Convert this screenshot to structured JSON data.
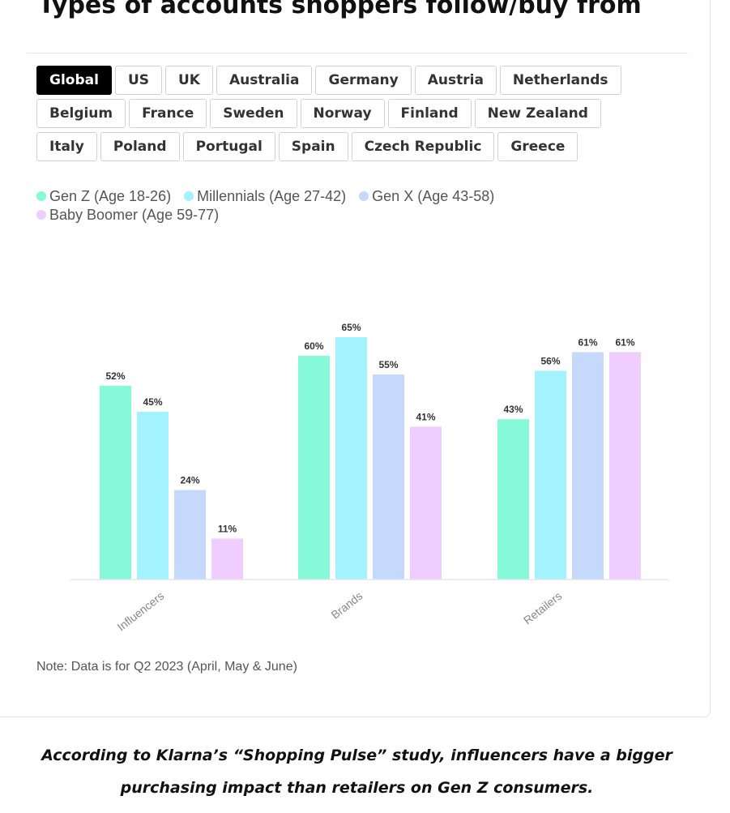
{
  "header": {
    "title": "Types of accounts shoppers follow/buy from"
  },
  "tabs": [
    {
      "label": "Global",
      "active": true
    },
    {
      "label": "US"
    },
    {
      "label": "UK"
    },
    {
      "label": "Australia"
    },
    {
      "label": "Germany"
    },
    {
      "label": "Austria"
    },
    {
      "label": "Netherlands"
    },
    {
      "label": "Belgium"
    },
    {
      "label": "France"
    },
    {
      "label": "Sweden"
    },
    {
      "label": "Norway"
    },
    {
      "label": "Finland"
    },
    {
      "label": "New Zealand"
    },
    {
      "label": "Italy"
    },
    {
      "label": "Poland"
    },
    {
      "label": "Portugal"
    },
    {
      "label": "Spain"
    },
    {
      "label": "Czech Republic"
    },
    {
      "label": "Greece"
    }
  ],
  "chart_data": {
    "type": "bar",
    "categories": [
      "Influencers",
      "Brands",
      "Retailers"
    ],
    "series": [
      {
        "name": "Gen Z (Age 18-26)",
        "color": "#86fad8",
        "values": [
          52,
          60,
          43
        ],
        "labels": [
          "52%",
          "60%",
          "43%"
        ]
      },
      {
        "name": "Millennials (Age 27-42)",
        "color": "#a3f2ff",
        "values": [
          45,
          65,
          56
        ],
        "labels": [
          "45%",
          "65%",
          "56%"
        ]
      },
      {
        "name": "Gen X (Age 43-58)",
        "color": "#c4d9fc",
        "values": [
          24,
          55,
          61
        ],
        "labels": [
          "24%",
          "55%",
          "61%"
        ]
      },
      {
        "name": "Baby Boomer (Age 59-77)",
        "color": "#efcdfe",
        "values": [
          11,
          41,
          61
        ],
        "labels": [
          "11%",
          "41%",
          "61%"
        ]
      }
    ],
    "ylim": [
      0,
      65
    ],
    "grid": false,
    "legend_position": "top-left"
  },
  "note": "Note: Data is for Q2 2023 (April, May & June)",
  "caption": "According to Klarna’s “Shopping Pulse” study, influencers have a bigger purchasing impact than retailers on Gen Z consumers."
}
